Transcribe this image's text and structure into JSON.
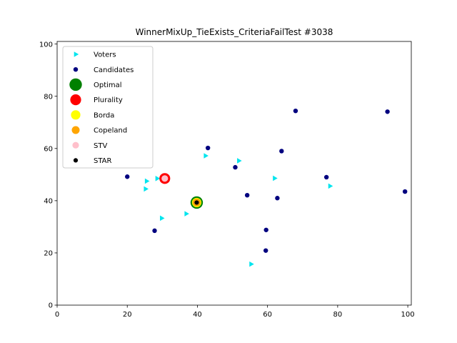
{
  "chart_data": {
    "type": "scatter",
    "title": "WinnerMixUp_TieExists_CriteriaFailTest #3038",
    "xlabel": "",
    "ylabel": "",
    "xlim": [
      0,
      101
    ],
    "ylim": [
      0,
      101
    ],
    "xticks": [
      0,
      20,
      40,
      60,
      80,
      100
    ],
    "yticks": [
      0,
      20,
      40,
      60,
      80,
      100
    ],
    "grid": false,
    "legend_position": "top-left",
    "series": [
      {
        "name": "Voters",
        "marker": "triangle-right",
        "color": "#00e5ee",
        "points": [
          [
            25.5,
            47.5
          ],
          [
            25.2,
            44.5
          ],
          [
            28.5,
            48.5
          ],
          [
            29.8,
            33.3
          ],
          [
            36.8,
            35.0
          ],
          [
            42.3,
            57.2
          ],
          [
            51.8,
            55.3
          ],
          [
            55.3,
            15.7
          ],
          [
            62.0,
            48.6
          ],
          [
            77.8,
            45.6
          ]
        ]
      },
      {
        "name": "Candidates",
        "marker": "circle",
        "color": "#00007f",
        "points": [
          [
            20.0,
            49.2
          ],
          [
            27.8,
            28.5
          ],
          [
            43.0,
            60.2
          ],
          [
            50.8,
            52.8
          ],
          [
            54.2,
            42.1
          ],
          [
            59.6,
            28.8
          ],
          [
            59.5,
            20.9
          ],
          [
            62.8,
            41.0
          ],
          [
            64.0,
            59.0
          ],
          [
            68.0,
            74.4
          ],
          [
            76.8,
            49.0
          ],
          [
            94.2,
            74.1
          ],
          [
            99.2,
            43.5
          ]
        ]
      },
      {
        "name": "Optimal",
        "marker": "circle",
        "color": "#008000",
        "points": [
          [
            39.8,
            39.3
          ]
        ]
      },
      {
        "name": "Plurality",
        "marker": "circle",
        "color": "#ff0000",
        "points": [
          [
            30.7,
            48.5
          ]
        ]
      },
      {
        "name": "Borda",
        "marker": "circle",
        "color": "#ffff00",
        "points": [
          [
            39.8,
            39.3
          ]
        ]
      },
      {
        "name": "Copeland",
        "marker": "circle",
        "color": "#ffa500",
        "points": [
          [
            39.8,
            39.3
          ]
        ]
      },
      {
        "name": "STV",
        "marker": "circle",
        "color": "#ffc0cb",
        "points": [
          [
            30.7,
            48.5
          ]
        ]
      },
      {
        "name": "STAR",
        "marker": "circle",
        "color": "#000000",
        "points": [
          [
            39.8,
            39.3
          ]
        ]
      }
    ]
  }
}
